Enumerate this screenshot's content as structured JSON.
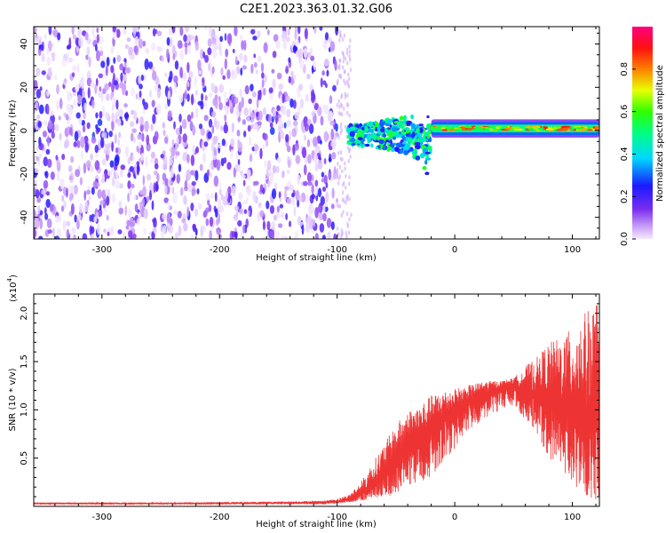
{
  "title": "C2E1.2023.363.01.32.G06",
  "colors": {
    "snr_line": "#ee3333",
    "background": "#ffffff",
    "axes": "#000000"
  },
  "chart_data": [
    {
      "type": "heatmap",
      "xlabel": "Height of straight line (km)",
      "ylabel": "Frequency (Hz)",
      "xlim": [
        -358,
        123
      ],
      "ylim": [
        -50,
        48
      ],
      "x_ticks": [
        -300,
        -200,
        -100,
        0,
        100
      ],
      "x_tick_labels": [
        "-300",
        "-200",
        "-100",
        "0",
        "100"
      ],
      "y_ticks": [
        -40,
        -20,
        0,
        20,
        40
      ],
      "y_tick_labels": [
        "-40",
        "-20",
        "0",
        "20",
        "40"
      ],
      "colorbar": {
        "label": "Normalized spectral amplitude",
        "range": [
          0,
          1
        ],
        "colormap": "rainbow (violet → blue → cyan → green → yellow → red → magenta)",
        "ticks": [
          0.0,
          0.2,
          0.4,
          0.6,
          0.8
        ],
        "tick_labels": [
          "0.0",
          "0.2",
          "0.4",
          "0.6",
          "0.8"
        ]
      },
      "regions": [
        {
          "x_range": [
            -358,
            -100
          ],
          "f_range": [
            -50,
            48
          ],
          "amplitude_range": [
            0.0,
            0.25
          ],
          "description_kind": "diffuse noise"
        },
        {
          "x_range": [
            -90,
            -20
          ],
          "f_center": -2,
          "f_halfwidth": 10,
          "amplitude_range": [
            0.2,
            0.6
          ],
          "description_kind": "broadened carrier"
        },
        {
          "x_range": [
            -20,
            123
          ],
          "f_center": 1,
          "f_halfwidth": 3,
          "amplitude_range": [
            0.45,
            0.9
          ],
          "description_kind": "narrow carrier"
        }
      ],
      "grid": false
    },
    {
      "type": "line",
      "xlabel": "Height of straight line (km)",
      "ylabel": "SNR (10 * v/v)",
      "y_scale_label": "(x10",
      "y_scale_exponent": "4",
      "y_scale_suffix": ")",
      "xlim": [
        -358,
        123
      ],
      "ylim": [
        0,
        2.2
      ],
      "x_ticks": [
        -300,
        -200,
        -100,
        0,
        100
      ],
      "x_tick_labels": [
        "-300",
        "-200",
        "-100",
        "0",
        "100"
      ],
      "y_ticks": [
        0.5,
        1.0,
        1.5,
        2.0
      ],
      "y_tick_labels": [
        "0.5",
        "1.0",
        "1.5",
        "2.0"
      ],
      "grid": false,
      "series": [
        {
          "x": [
            -358,
            -300,
            -250,
            -200,
            -150,
            -110,
            -100,
            -90,
            -80,
            -70,
            -60,
            -50,
            -40,
            -30,
            -20,
            -10,
            0,
            10,
            20,
            30,
            40,
            50,
            60,
            70,
            80,
            90,
            100,
            110,
            123
          ],
          "y": [
            0.03,
            0.03,
            0.03,
            0.03,
            0.035,
            0.04,
            0.05,
            0.07,
            0.12,
            0.2,
            0.32,
            0.45,
            0.6,
            0.7,
            0.8,
            0.9,
            1.0,
            1.08,
            1.15,
            1.2,
            1.24,
            1.27,
            1.2,
            1.15,
            1.1,
            1.05,
            1.0,
            0.95,
            0.9
          ],
          "y_low": [
            0.02,
            0.02,
            0.02,
            0.02,
            0.02,
            0.02,
            0.03,
            0.04,
            0.05,
            0.08,
            0.1,
            0.12,
            0.2,
            0.25,
            0.3,
            0.45,
            0.6,
            0.75,
            0.85,
            0.95,
            1.0,
            1.05,
            0.9,
            0.75,
            0.5,
            0.4,
            0.25,
            0.1,
            0.05
          ],
          "y_high": [
            0.04,
            0.04,
            0.04,
            0.045,
            0.05,
            0.06,
            0.08,
            0.12,
            0.25,
            0.45,
            0.65,
            0.85,
            1.0,
            1.05,
            1.15,
            1.2,
            1.22,
            1.25,
            1.28,
            1.3,
            1.3,
            1.33,
            1.45,
            1.55,
            1.7,
            1.75,
            1.85,
            2.0,
            2.15
          ]
        }
      ]
    }
  ]
}
